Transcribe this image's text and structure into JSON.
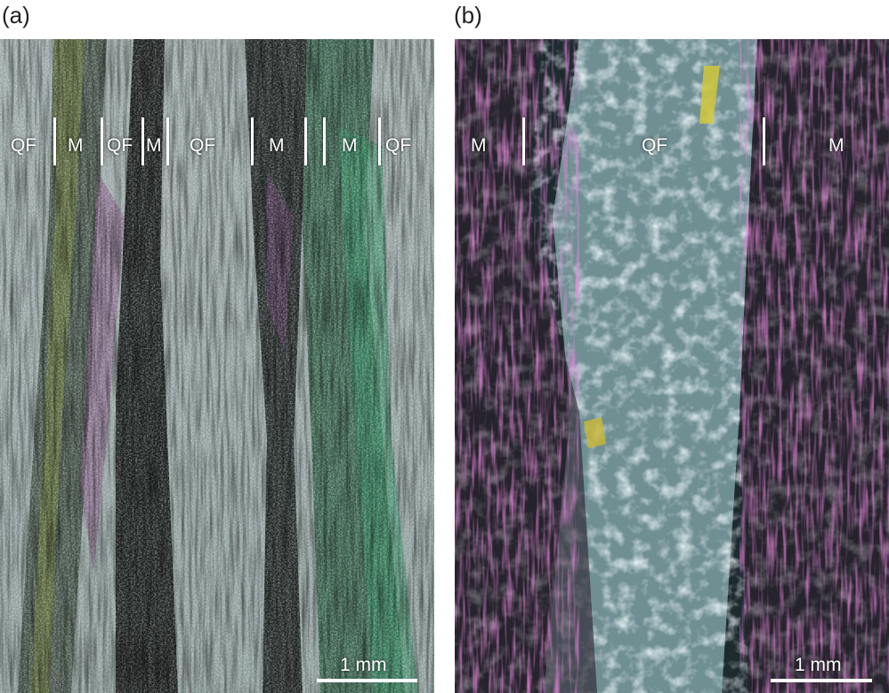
{
  "panels": [
    {
      "label": "(a)",
      "bands": [
        "QF",
        "M",
        "QF",
        "M",
        "QF",
        "M",
        "M",
        "QF"
      ],
      "scale": "1 mm"
    },
    {
      "label": "(b)",
      "bands": [
        "M",
        "QF",
        "M"
      ],
      "scale": "1 mm"
    }
  ]
}
